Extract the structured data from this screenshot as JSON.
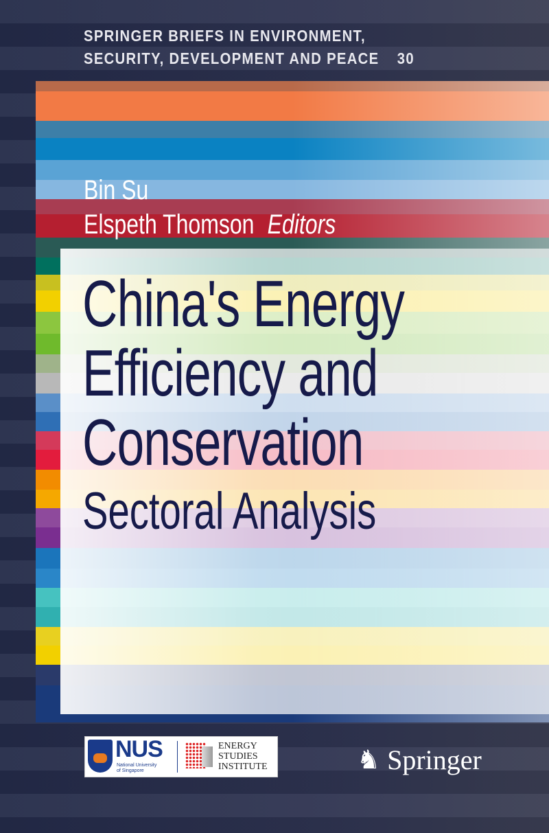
{
  "series": {
    "line1": "SPRINGER BRIEFS IN ENVIRONMENT,",
    "line2": "SECURITY, DEVELOPMENT AND PEACE",
    "number": "30"
  },
  "editors": {
    "names": [
      "Bin Su",
      "Elspeth Thomson"
    ],
    "role": "Editors"
  },
  "title": {
    "lines": [
      "China's Energy",
      "Efficiency and",
      "Conservation"
    ],
    "subtitle": "Sectoral Analysis"
  },
  "logos": {
    "nus": {
      "abbr": "NUS",
      "line1": "National University",
      "line2": "of Singapore"
    },
    "esi": {
      "line1": "ENERGY",
      "line2": "STUDIES",
      "line3": "INSTITUTE"
    },
    "publisher": "Springer"
  },
  "colors": {
    "title_text": "#161a4a",
    "background": "#2a2f48"
  }
}
